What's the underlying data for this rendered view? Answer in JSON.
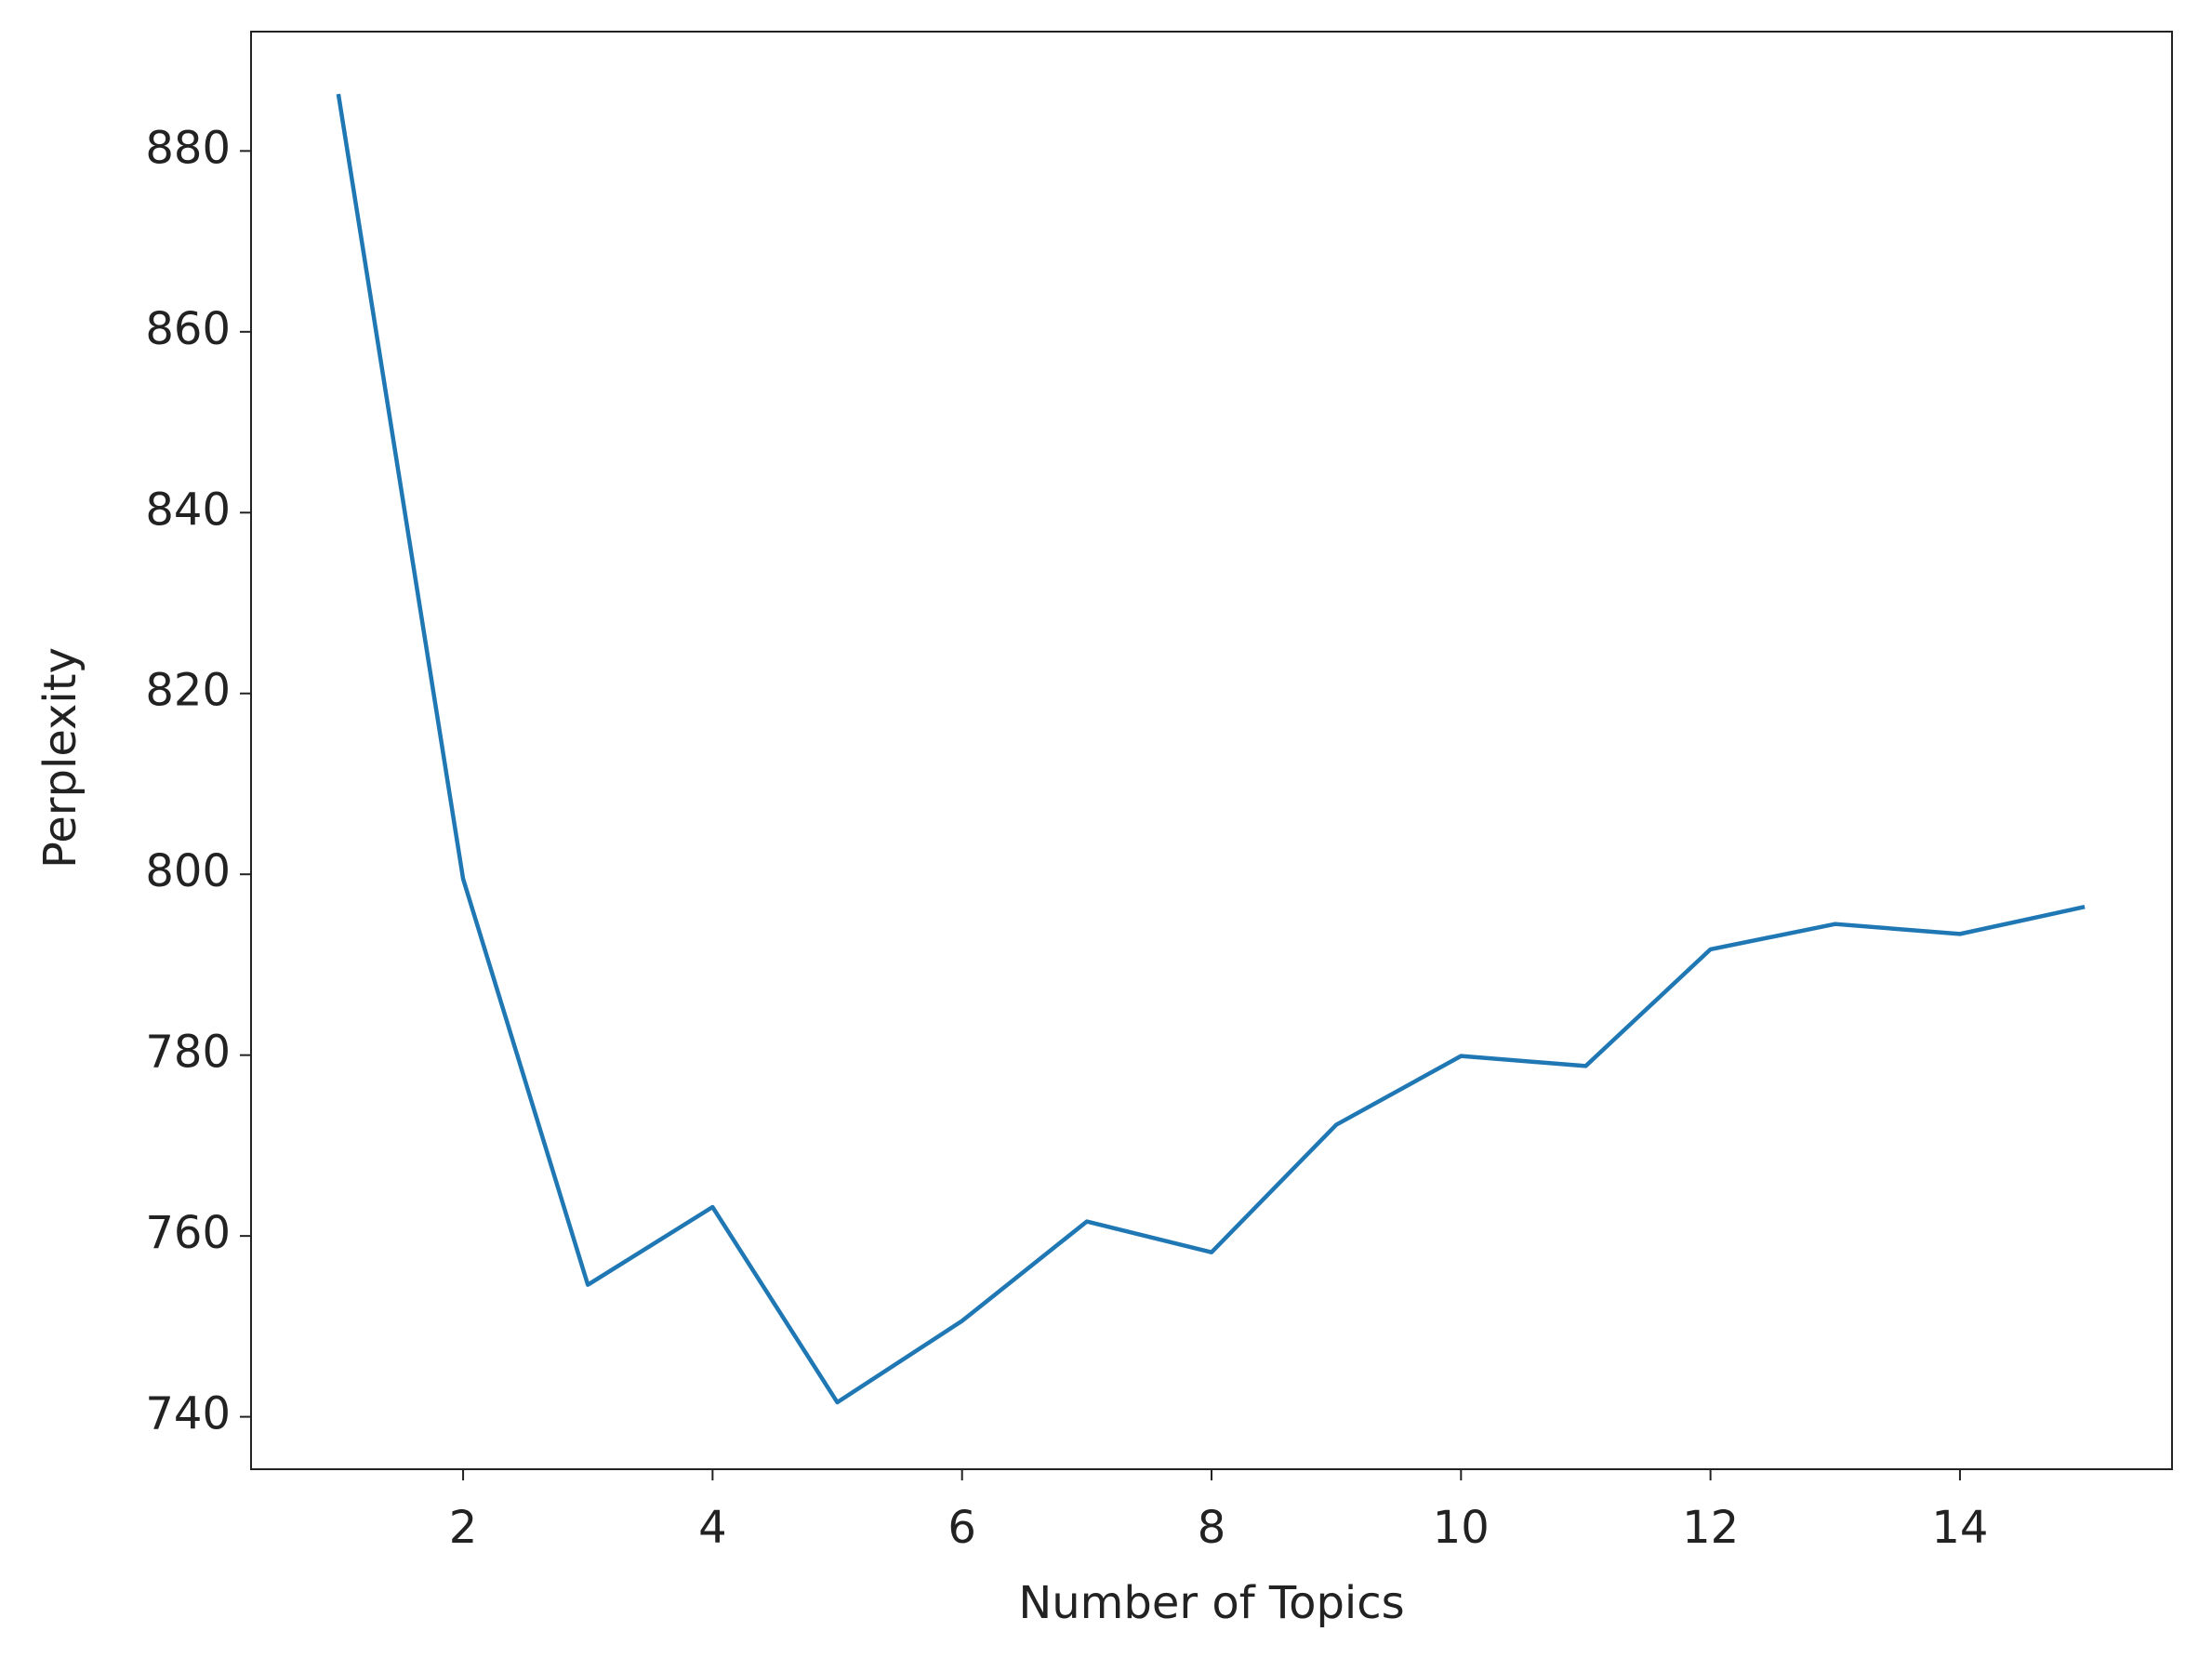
{
  "chart_data": {
    "type": "line",
    "x_label": "Number of Topics",
    "y_label": "Perplexity",
    "x": [
      1,
      2,
      3,
      4,
      5,
      6,
      7,
      8,
      9,
      10,
      11,
      12,
      13,
      14,
      15
    ],
    "series": [
      {
        "color": "#1f77b4",
        "values": [
          886.3,
          799.5,
          754.6,
          763.2,
          741.6,
          750.6,
          761.6,
          758.2,
          772.3,
          779.9,
          778.8,
          791.7,
          794.5,
          793.4,
          796.4
        ]
      }
    ],
    "xlim": [
      0.3,
      15.7
    ],
    "ylim": [
      734.2,
      893.2
    ],
    "xticks": [
      2,
      4,
      6,
      8,
      10,
      12,
      14
    ],
    "yticks": [
      740,
      760,
      780,
      800,
      820,
      840,
      860,
      880
    ],
    "grid": false
  }
}
